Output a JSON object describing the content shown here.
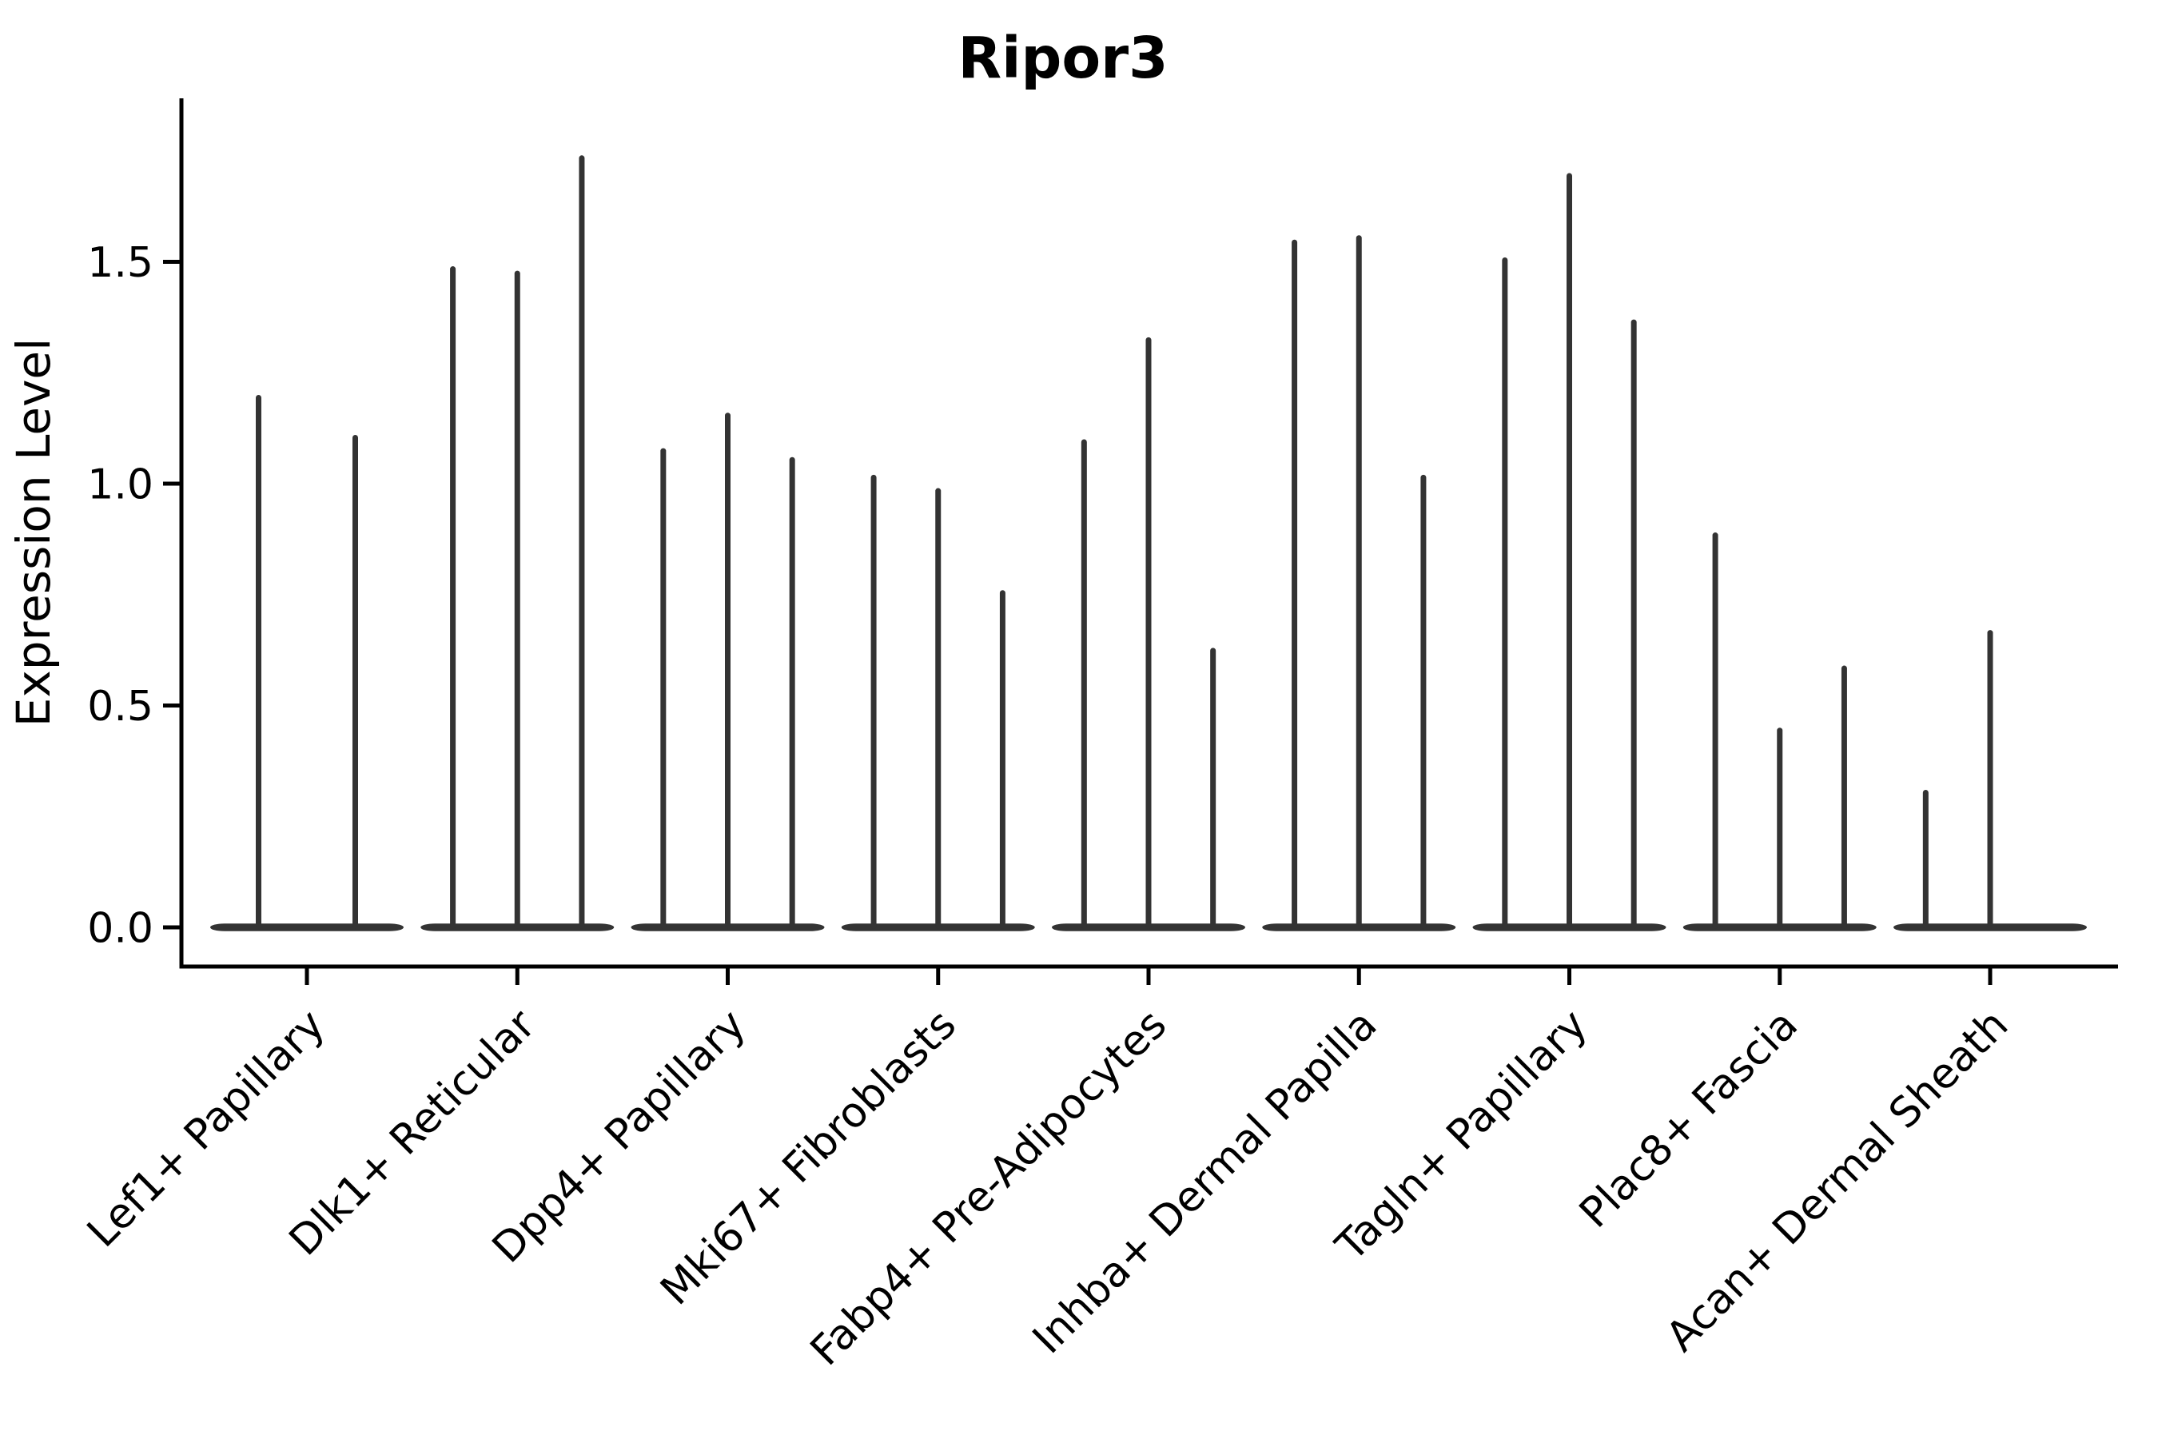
{
  "chart_data": {
    "type": "violin",
    "title": "Ripor3",
    "ylabel": "Expression Level",
    "xlabel": "",
    "ytick_labels": [
      "0.0",
      "0.5",
      "1.0",
      "1.5"
    ],
    "ytick_values": [
      0,
      0.5,
      1.0,
      1.5
    ],
    "ylim": [
      -0.09,
      1.87
    ],
    "grid": false,
    "legend": "none",
    "background": "#ffffff",
    "violin_color": "#333333",
    "axis_color": "#000000",
    "text_color": "#000000",
    "categories": [
      "Lef1+ Papillary",
      "Dlk1+ Reticular",
      "Dpp4+ Papillary",
      "Mki67+ Fibroblasts",
      "Fabp4+ Pre-Adipocytes",
      "Inhba+ Dermal Papilla",
      "Tagln+ Papillary",
      "Plac8+ Fascia",
      "Acan+ Dermal Sheath"
    ],
    "groups": [
      {
        "category": "Lef1+ Papillary",
        "violin_maxima": [
          1.2,
          1.11
        ]
      },
      {
        "category": "Dlk1+ Reticular",
        "violin_maxima": [
          1.49,
          1.48,
          1.74
        ]
      },
      {
        "category": "Dpp4+ Papillary",
        "violin_maxima": [
          1.08,
          1.16,
          1.06
        ]
      },
      {
        "category": "Mki67+ Fibroblasts",
        "violin_maxima": [
          1.02,
          0.99,
          0.76
        ]
      },
      {
        "category": "Fabp4+ Pre-Adipocytes",
        "violin_maxima": [
          1.1,
          1.33,
          0.63
        ]
      },
      {
        "category": "Inhba+ Dermal Papilla",
        "violin_maxima": [
          1.55,
          1.56,
          1.02
        ]
      },
      {
        "category": "Tagln+ Papillary",
        "violin_maxima": [
          1.51,
          1.7,
          1.37
        ]
      },
      {
        "category": "Plac8+ Fascia",
        "violin_maxima": [
          0.89,
          0.45,
          0.59
        ]
      },
      {
        "category": "Acan+ Dermal Sheath",
        "violin_maxima": [
          0.31,
          0.67,
          0
        ]
      }
    ],
    "note": "Each violin is collapsed at expression 0 (flat base) with a thin density tail rising to its maximum expression value."
  }
}
